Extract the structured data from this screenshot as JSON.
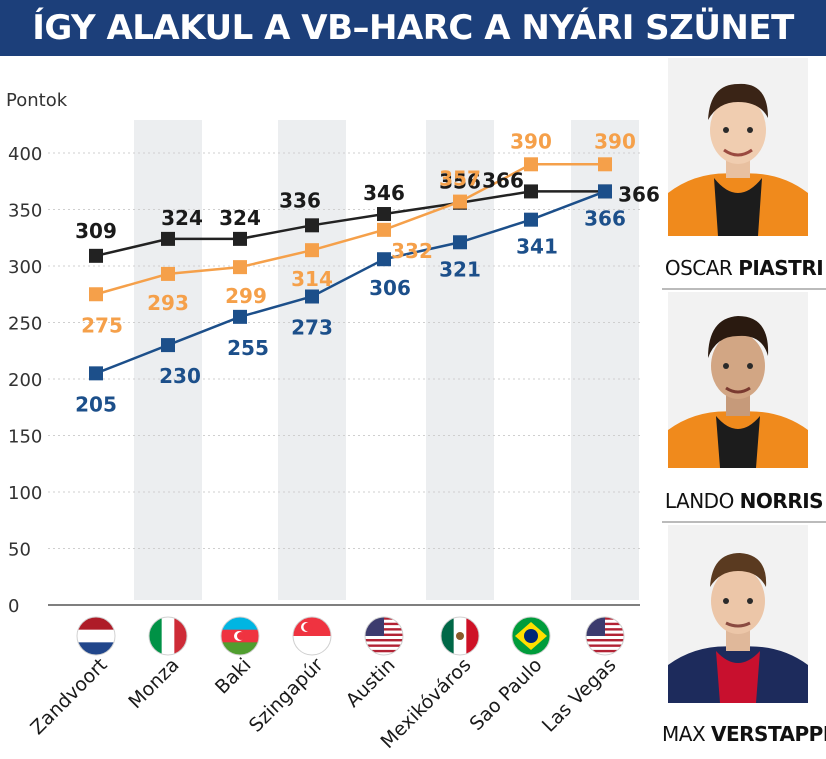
{
  "title": "ÍGY ALAKUL A VB–HARC A NYÁRI SZÜNET ÓTA",
  "chart_data": {
    "type": "line",
    "ylabel": "Pontok",
    "ylim": [
      0,
      400
    ],
    "yticks": [
      0,
      50,
      100,
      150,
      200,
      250,
      300,
      350,
      400
    ],
    "categories": [
      "Zandvoort",
      "Monza",
      "Baki",
      "Szingapúr",
      "Austin",
      "Mexikóváros",
      "Sao Paulo",
      "Las Vegas"
    ],
    "flags": [
      "flag-netherlands",
      "flag-italy",
      "flag-azerbaijan",
      "flag-singapore",
      "flag-usa",
      "flag-mexico",
      "flag-brazil",
      "flag-usa"
    ],
    "series": [
      {
        "driver": "Oscar Piastri",
        "color": "#222222",
        "values": [
          309,
          324,
          324,
          336,
          346,
          356,
          366,
          366
        ]
      },
      {
        "driver": "Lando Norris",
        "color": "#f5a04a",
        "values": [
          275,
          293,
          299,
          314,
          332,
          357,
          390,
          390
        ]
      },
      {
        "driver": "Max Verstappen",
        "color": "#1c4f8a",
        "values": [
          205,
          230,
          255,
          273,
          306,
          321,
          341,
          366
        ]
      }
    ],
    "grid": true
  },
  "drivers": [
    {
      "first": "OSCAR",
      "last": "PIASTRI",
      "photo": "oscar-piastri-photo"
    },
    {
      "first": "LANDO",
      "last": "NORRIS",
      "photo": "lando-norris-photo"
    },
    {
      "first": "MAX",
      "last": "VERSTAPPEN",
      "photo": "max-verstappen-photo"
    }
  ]
}
